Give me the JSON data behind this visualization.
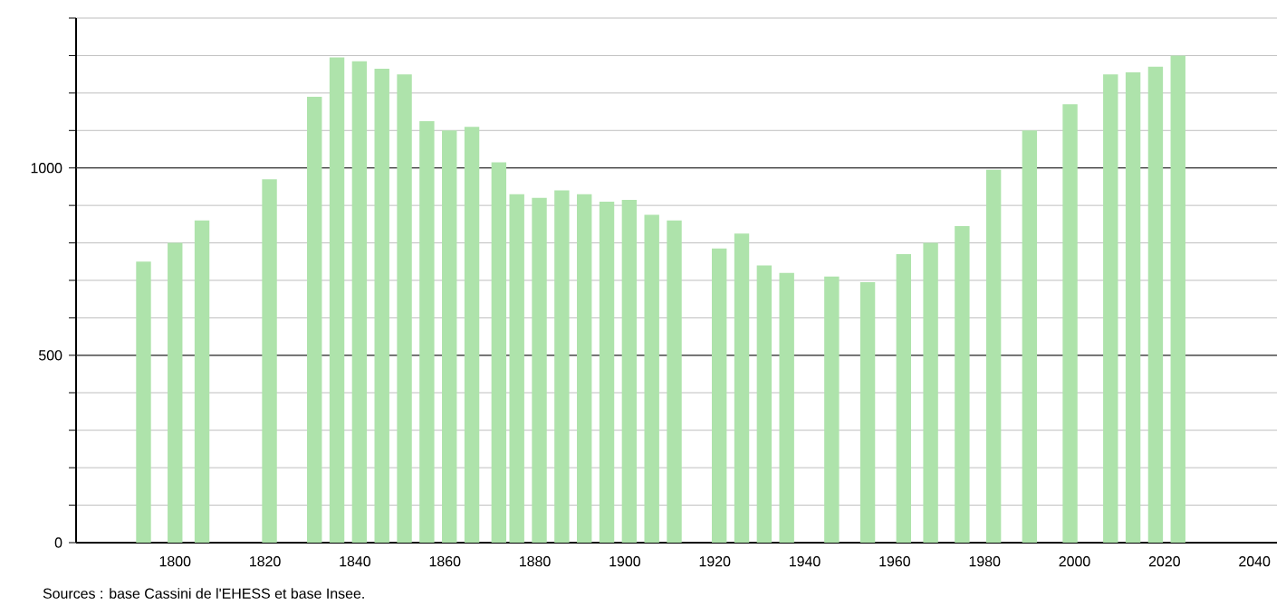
{
  "chart_data": {
    "type": "bar",
    "x": [
      1793,
      1800,
      1806,
      1821,
      1831,
      1836,
      1841,
      1846,
      1851,
      1856,
      1861,
      1866,
      1872,
      1876,
      1881,
      1886,
      1891,
      1896,
      1901,
      1906,
      1911,
      1921,
      1926,
      1931,
      1936,
      1946,
      1954,
      1962,
      1968,
      1975,
      1982,
      1990,
      1999,
      2008,
      2013,
      2018,
      2023
    ],
    "values": [
      750,
      800,
      860,
      970,
      1190,
      1295,
      1285,
      1265,
      1250,
      1125,
      1100,
      1110,
      1015,
      930,
      920,
      940,
      930,
      910,
      915,
      875,
      860,
      785,
      825,
      740,
      720,
      710,
      695,
      770,
      800,
      845,
      995,
      1100,
      1170,
      1250,
      1255,
      1270,
      1300
    ],
    "color": "#aee3ab",
    "xlim": [
      1778,
      2045
    ],
    "ylim": [
      0,
      1400
    ],
    "xticks": [
      1800,
      1820,
      1840,
      1860,
      1880,
      1900,
      1920,
      1940,
      1960,
      1980,
      2000,
      2020,
      2040
    ],
    "yticks": [
      0,
      {
        "value": 100,
        "label": null
      },
      {
        "value": 200,
        "label": null
      },
      {
        "value": 300,
        "label": null
      },
      {
        "value": 400,
        "label": null
      },
      500,
      {
        "value": 600,
        "label": null
      },
      {
        "value": 700,
        "label": null
      },
      {
        "value": 800,
        "label": null
      },
      {
        "value": 900,
        "label": null
      },
      1000,
      {
        "value": 1100,
        "label": null
      },
      {
        "value": 1200,
        "label": null
      },
      {
        "value": 1300,
        "label": null
      },
      {
        "value": 1400,
        "label": null
      }
    ],
    "grid": "y",
    "annotations": [
      "Sources : base Cassini de l'EHESS et base Insee."
    ]
  }
}
